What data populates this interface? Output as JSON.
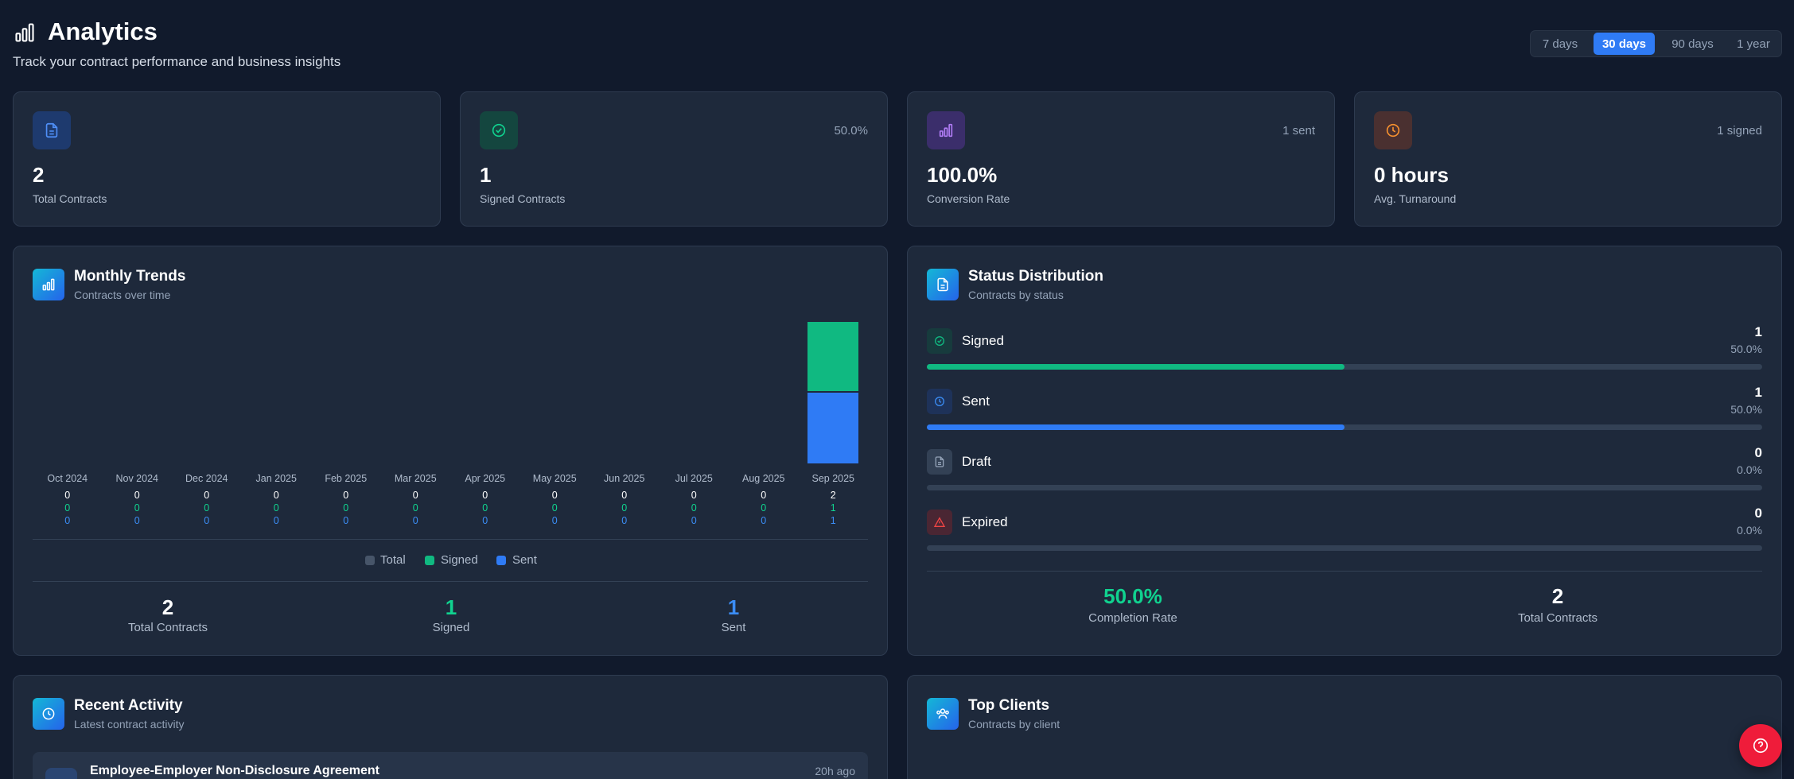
{
  "header": {
    "title": "Analytics",
    "subtitle": "Track your contract performance and business insights",
    "icon": "bar-chart-icon"
  },
  "range_tabs": [
    {
      "label": "7 days",
      "active": false
    },
    {
      "label": "30 days",
      "active": true
    },
    {
      "label": "90 days",
      "active": false
    },
    {
      "label": "1 year",
      "active": false
    }
  ],
  "kpis": [
    {
      "value": "2",
      "label": "Total Contracts",
      "badge": "",
      "icon": "file-icon",
      "color": "#3b82f6"
    },
    {
      "value": "1",
      "label": "Signed Contracts",
      "badge": "50.0%",
      "icon": "check-circle-icon",
      "color": "#10b981"
    },
    {
      "value": "100.0%",
      "label": "Conversion Rate",
      "badge": "1 sent",
      "icon": "bar-chart-icon",
      "color": "#a855f7"
    },
    {
      "value": "0 hours",
      "label": "Avg. Turnaround",
      "badge": "1 signed",
      "icon": "clock-icon",
      "color": "#f97316"
    }
  ],
  "monthly": {
    "title": "Monthly Trends",
    "subtitle": "Contracts over time",
    "legend": [
      "Total",
      "Signed",
      "Sent"
    ],
    "summary": [
      {
        "value": "2",
        "label": "Total Contracts",
        "color": "#ffffff"
      },
      {
        "value": "1",
        "label": "Signed",
        "color": "#10d28f"
      },
      {
        "value": "1",
        "label": "Sent",
        "color": "#3b8df5"
      }
    ]
  },
  "chart_data": {
    "type": "bar",
    "categories": [
      "Oct 2024",
      "Nov 2024",
      "Dec 2024",
      "Jan 2025",
      "Feb 2025",
      "Mar 2025",
      "Apr 2025",
      "May 2025",
      "Jun 2025",
      "Jul 2025",
      "Aug 2025",
      "Sep 2025"
    ],
    "series": [
      {
        "name": "Total",
        "values": [
          0,
          0,
          0,
          0,
          0,
          0,
          0,
          0,
          0,
          0,
          0,
          2
        ]
      },
      {
        "name": "Signed",
        "values": [
          0,
          0,
          0,
          0,
          0,
          0,
          0,
          0,
          0,
          0,
          0,
          1
        ]
      },
      {
        "name": "Sent",
        "values": [
          0,
          0,
          0,
          0,
          0,
          0,
          0,
          0,
          0,
          0,
          0,
          1
        ]
      }
    ],
    "stacked": true,
    "ylim": [
      0,
      2
    ],
    "colors": {
      "Total": "#475569",
      "Signed": "#10b981",
      "Sent": "#2f7bf5"
    }
  },
  "status": {
    "title": "Status Distribution",
    "subtitle": "Contracts by status",
    "rows": [
      {
        "name": "Signed",
        "count": "1",
        "pct": "50.0%",
        "fraction": 0.5,
        "color": "#10b981",
        "bg": "#173b3d",
        "icon": "check-circle-icon"
      },
      {
        "name": "Sent",
        "count": "1",
        "pct": "50.0%",
        "fraction": 0.5,
        "color": "#2f7bf5",
        "bg": "#1e3259",
        "icon": "clock-icon"
      },
      {
        "name": "Draft",
        "count": "0",
        "pct": "0.0%",
        "fraction": 0,
        "color": "#64748b",
        "bg": "#334155",
        "icon": "file-icon"
      },
      {
        "name": "Expired",
        "count": "0",
        "pct": "0.0%",
        "fraction": 0,
        "color": "#ef4444",
        "bg": "#4a2633",
        "icon": "alert-triangle-icon"
      }
    ],
    "completion_rate": "50.0%",
    "completion_label": "Completion Rate",
    "total": "2",
    "total_label": "Total Contracts"
  },
  "activity": {
    "title": "Recent Activity",
    "subtitle": "Latest contract activity",
    "items": [
      {
        "title": "Employee-Employer Non-Disclosure Agreement",
        "time": "20h ago"
      }
    ]
  },
  "clients": {
    "title": "Top Clients",
    "subtitle": "Contracts by client"
  }
}
